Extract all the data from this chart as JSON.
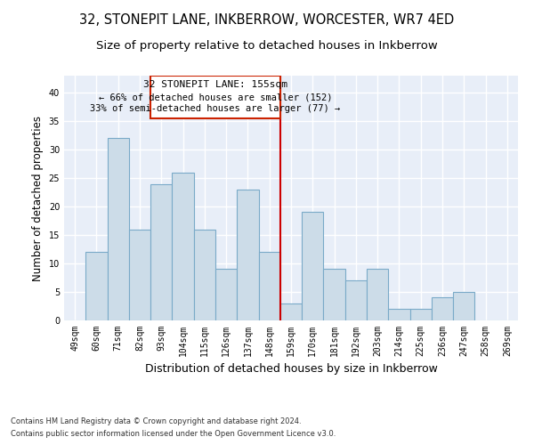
{
  "title": "32, STONEPIT LANE, INKBERROW, WORCESTER, WR7 4ED",
  "subtitle": "Size of property relative to detached houses in Inkberrow",
  "xlabel": "Distribution of detached houses by size in Inkberrow",
  "ylabel": "Number of detached properties",
  "footnote1": "Contains HM Land Registry data © Crown copyright and database right 2024.",
  "footnote2": "Contains public sector information licensed under the Open Government Licence v3.0.",
  "categories": [
    "49sqm",
    "60sqm",
    "71sqm",
    "82sqm",
    "93sqm",
    "104sqm",
    "115sqm",
    "126sqm",
    "137sqm",
    "148sqm",
    "159sqm",
    "170sqm",
    "181sqm",
    "192sqm",
    "203sqm",
    "214sqm",
    "225sqm",
    "236sqm",
    "247sqm",
    "258sqm",
    "269sqm"
  ],
  "values": [
    0,
    12,
    32,
    16,
    24,
    26,
    16,
    9,
    23,
    12,
    3,
    19,
    9,
    7,
    9,
    2,
    2,
    4,
    5,
    0,
    0
  ],
  "bar_color": "#ccdce8",
  "bar_edge_color": "#7aaac8",
  "annotation_title": "32 STONEPIT LANE: 155sqm",
  "annotation_line1": "← 66% of detached houses are smaller (152)",
  "annotation_line2": "33% of semi-detached houses are larger (77) →",
  "vline_color": "#cc0000",
  "background_color": "#e8eef8",
  "ylim": [
    0,
    43
  ],
  "yticks": [
    0,
    5,
    10,
    15,
    20,
    25,
    30,
    35,
    40
  ],
  "title_fontsize": 10.5,
  "subtitle_fontsize": 9.5,
  "xlabel_fontsize": 9,
  "ylabel_fontsize": 8.5
}
